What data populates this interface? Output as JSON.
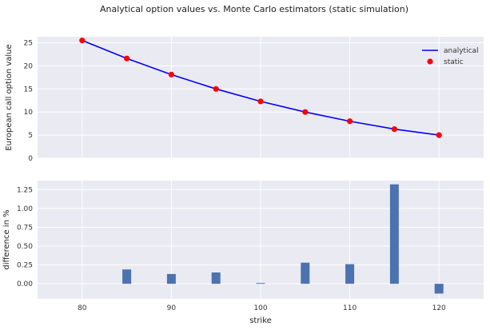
{
  "chart_data": [
    {
      "type": "line",
      "title": "Analytical option values vs. Monte Carlo estimators (static simulation)",
      "ylabel": "European call option value",
      "xlabel": "",
      "xlim": [
        75,
        125
      ],
      "ylim": [
        0,
        26.3
      ],
      "xticks": [
        80,
        90,
        100,
        110,
        120
      ],
      "yticks": [
        0,
        5,
        10,
        15,
        20,
        25
      ],
      "grid": true,
      "legend": "top-right",
      "series": [
        {
          "name": "analytical",
          "kind": "line",
          "color": "#0000ff",
          "x": [
            80,
            85,
            90,
            95,
            100,
            105,
            110,
            115,
            120
          ],
          "values": [
            25.5,
            21.6,
            18.1,
            15.0,
            12.3,
            10.0,
            8.0,
            6.3,
            5.0
          ]
        },
        {
          "name": "static",
          "kind": "marker",
          "color": "#ff0000",
          "x": [
            80,
            85,
            90,
            95,
            100,
            105,
            110,
            115,
            120
          ],
          "values": [
            25.5,
            21.6,
            18.1,
            15.0,
            12.3,
            10.0,
            8.0,
            6.3,
            5.0
          ]
        }
      ]
    },
    {
      "type": "bar",
      "ylabel": "difference in %",
      "xlabel": "strike",
      "xlim": [
        75,
        125
      ],
      "ylim": [
        -0.2,
        1.37
      ],
      "xticks": [
        80,
        90,
        100,
        110,
        120
      ],
      "yticks": [
        0.0,
        0.25,
        0.5,
        0.75,
        1.0,
        1.25
      ],
      "ytick_labels": [
        "0.00",
        "0.25",
        "0.50",
        "0.75",
        "1.00",
        "1.25"
      ],
      "grid": true,
      "bar_color": "#4c72b0",
      "x": [
        80,
        85,
        90,
        95,
        100,
        105,
        110,
        115,
        120
      ],
      "values": [
        0.0,
        0.19,
        0.13,
        0.15,
        0.01,
        0.28,
        0.26,
        1.32,
        -0.13
      ]
    }
  ]
}
